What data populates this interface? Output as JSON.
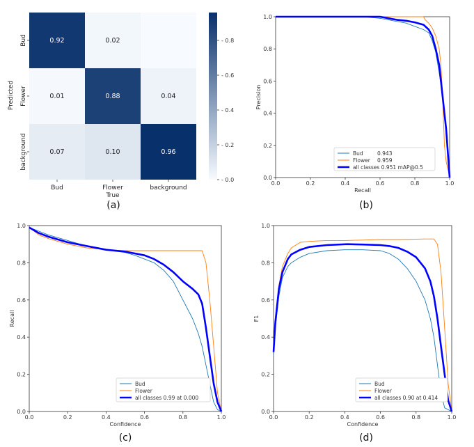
{
  "chart_data": [
    {
      "type": "heatmap",
      "caption": "(a)",
      "xlabel": "True",
      "ylabel": "Predicted",
      "x_categories": [
        "Bud",
        "Flower",
        "background"
      ],
      "y_categories": [
        "Bud",
        "Flower",
        "background"
      ],
      "values": [
        [
          0.92,
          0.02,
          null
        ],
        [
          0.01,
          0.88,
          0.04
        ],
        [
          0.07,
          0.1,
          0.96
        ]
      ],
      "colorbar_ticks": [
        "0.0",
        "0.2",
        "0.4",
        "0.6",
        "0.8"
      ],
      "colorbar_range": [
        0,
        0.96
      ],
      "colormap": [
        "#f7fbff",
        "#08306b"
      ]
    },
    {
      "type": "line",
      "caption": "(b)",
      "xlabel": "Recall",
      "ylabel": "Precision",
      "xlim": [
        0,
        1
      ],
      "ylim": [
        0,
        1
      ],
      "xticks": [
        "0.0",
        "0.2",
        "0.4",
        "0.6",
        "0.8",
        "1.0"
      ],
      "yticks": [
        "0.0",
        "0.2",
        "0.4",
        "0.6",
        "0.8",
        "1.0"
      ],
      "legend_position": "lower-center",
      "series": [
        {
          "name": "Bud",
          "value": "0.943",
          "color": "#1f77b4",
          "x": [
            0,
            0.5,
            0.6,
            0.65,
            0.7,
            0.75,
            0.8,
            0.85,
            0.88,
            0.9,
            0.92,
            0.94,
            0.96,
            0.98,
            1.0
          ],
          "y": [
            1,
            1,
            0.99,
            0.98,
            0.97,
            0.96,
            0.94,
            0.92,
            0.9,
            0.85,
            0.78,
            0.65,
            0.5,
            0.3,
            0
          ]
        },
        {
          "name": "Flower",
          "value": "0.959",
          "color": "#ff7f0e",
          "x": [
            0,
            0.85,
            0.86,
            0.88,
            0.9,
            0.92,
            0.94,
            0.95,
            0.96,
            0.97,
            0.98,
            0.99,
            1.0
          ],
          "y": [
            1,
            1,
            0.98,
            0.96,
            0.93,
            0.88,
            0.8,
            0.7,
            0.5,
            0.2,
            0.1,
            0.05,
            0
          ]
        },
        {
          "name": "all classes 0.951 mAP@0.5",
          "color": "#0000ff",
          "x": [
            0,
            0.6,
            0.65,
            0.7,
            0.75,
            0.8,
            0.85,
            0.88,
            0.9,
            0.92,
            0.94,
            0.96,
            0.98,
            1.0
          ],
          "y": [
            1,
            1,
            0.99,
            0.98,
            0.975,
            0.965,
            0.95,
            0.92,
            0.88,
            0.8,
            0.7,
            0.5,
            0.3,
            0
          ]
        }
      ]
    },
    {
      "type": "line",
      "caption": "(c)",
      "xlabel": "Confidence",
      "ylabel": "Recall",
      "xlim": [
        0,
        1
      ],
      "ylim": [
        0,
        1
      ],
      "xticks": [
        "0.0",
        "0.2",
        "0.4",
        "0.6",
        "0.8",
        "1.0"
      ],
      "yticks": [
        "0.0",
        "0.2",
        "0.4",
        "0.6",
        "0.8",
        "1.0"
      ],
      "legend_position": "lower-center",
      "series": [
        {
          "name": "Bud",
          "color": "#1f77b4",
          "x": [
            0,
            0.05,
            0.1,
            0.2,
            0.3,
            0.4,
            0.5,
            0.55,
            0.6,
            0.65,
            0.7,
            0.75,
            0.8,
            0.85,
            0.88,
            0.9,
            0.92,
            0.94,
            0.96,
            0.98,
            1.0
          ],
          "y": [
            0.99,
            0.97,
            0.95,
            0.92,
            0.89,
            0.87,
            0.855,
            0.84,
            0.82,
            0.8,
            0.76,
            0.7,
            0.6,
            0.5,
            0.42,
            0.35,
            0.25,
            0.15,
            0.05,
            0.01,
            0
          ]
        },
        {
          "name": "Flower",
          "color": "#ff7f0e",
          "x": [
            0,
            0.05,
            0.1,
            0.2,
            0.3,
            0.4,
            0.5,
            0.6,
            0.7,
            0.8,
            0.85,
            0.9,
            0.92,
            0.94,
            0.96,
            0.98,
            1.0
          ],
          "y": [
            0.99,
            0.95,
            0.93,
            0.9,
            0.88,
            0.87,
            0.865,
            0.865,
            0.865,
            0.865,
            0.865,
            0.865,
            0.8,
            0.6,
            0.35,
            0.1,
            0
          ]
        },
        {
          "name": "all classes 0.99 at 0.000",
          "color": "#0000ff",
          "x": [
            0,
            0.05,
            0.1,
            0.2,
            0.3,
            0.4,
            0.5,
            0.6,
            0.65,
            0.7,
            0.75,
            0.8,
            0.85,
            0.88,
            0.9,
            0.92,
            0.94,
            0.96,
            0.98,
            1.0
          ],
          "y": [
            0.99,
            0.96,
            0.94,
            0.91,
            0.89,
            0.87,
            0.86,
            0.84,
            0.82,
            0.79,
            0.75,
            0.7,
            0.66,
            0.63,
            0.58,
            0.45,
            0.3,
            0.15,
            0.05,
            0
          ]
        }
      ]
    },
    {
      "type": "line",
      "caption": "(d)",
      "xlabel": "Confidence",
      "ylabel": "F1",
      "xlim": [
        0,
        1
      ],
      "ylim": [
        0,
        1
      ],
      "xticks": [
        "0.0",
        "0.2",
        "0.4",
        "0.6",
        "0.8",
        "1.0"
      ],
      "yticks": [
        "0.0",
        "0.2",
        "0.4",
        "0.6",
        "0.8",
        "1.0"
      ],
      "legend_position": "lower-center",
      "series": [
        {
          "name": "Bud",
          "color": "#1f77b4",
          "x": [
            0,
            0.01,
            0.03,
            0.05,
            0.08,
            0.1,
            0.15,
            0.2,
            0.3,
            0.4,
            0.5,
            0.6,
            0.65,
            0.7,
            0.75,
            0.8,
            0.85,
            0.88,
            0.9,
            0.92,
            0.94,
            0.96,
            1.0
          ],
          "y": [
            0.3,
            0.45,
            0.62,
            0.72,
            0.78,
            0.8,
            0.83,
            0.85,
            0.865,
            0.87,
            0.87,
            0.865,
            0.85,
            0.82,
            0.77,
            0.7,
            0.6,
            0.5,
            0.4,
            0.25,
            0.1,
            0.02,
            0
          ]
        },
        {
          "name": "Flower",
          "color": "#ff7f0e",
          "x": [
            0,
            0.01,
            0.03,
            0.05,
            0.08,
            0.1,
            0.15,
            0.2,
            0.3,
            0.4,
            0.5,
            0.6,
            0.7,
            0.8,
            0.85,
            0.9,
            0.92,
            0.94,
            0.96,
            0.98,
            1.0
          ],
          "y": [
            0.35,
            0.5,
            0.68,
            0.78,
            0.85,
            0.88,
            0.91,
            0.915,
            0.92,
            0.92,
            0.922,
            0.925,
            0.925,
            0.927,
            0.928,
            0.928,
            0.9,
            0.75,
            0.45,
            0.15,
            0
          ]
        },
        {
          "name": "all classes 0.90 at 0.414",
          "color": "#0000ff",
          "x": [
            0,
            0.01,
            0.03,
            0.05,
            0.08,
            0.1,
            0.15,
            0.2,
            0.3,
            0.414,
            0.5,
            0.6,
            0.65,
            0.7,
            0.75,
            0.8,
            0.85,
            0.88,
            0.9,
            0.92,
            0.94,
            0.96,
            0.98,
            1.0
          ],
          "y": [
            0.32,
            0.48,
            0.66,
            0.75,
            0.82,
            0.845,
            0.87,
            0.885,
            0.895,
            0.9,
            0.898,
            0.895,
            0.89,
            0.88,
            0.86,
            0.83,
            0.77,
            0.7,
            0.62,
            0.5,
            0.35,
            0.2,
            0.06,
            0
          ]
        }
      ]
    }
  ]
}
